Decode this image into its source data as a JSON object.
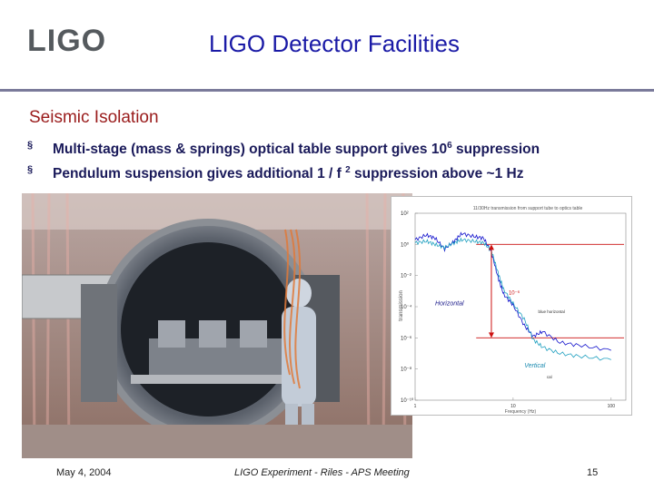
{
  "logo": "LIGO",
  "title": "LIGO Detector Facilities",
  "subtitle": "Seismic Isolation",
  "bullets": [
    {
      "text": "Multi-stage (mass & springs) optical table support gives 10",
      "sup": "6",
      "after": " suppression"
    },
    {
      "text": "Pendulum suspension gives additional 1 / f ",
      "sup": "2",
      "after": " suppression above ~1 Hz"
    }
  ],
  "bullet_glyph": "§",
  "chart_data": {
    "type": "line",
    "title": "11/30Hz transmission from support tube to optics table",
    "ylabel": "transmission",
    "xlabel": "Frequency (Hz)",
    "yscale": "log",
    "xscale": "log",
    "yticks": [
      "10²",
      "10⁰",
      "10⁻²",
      "10⁻⁴",
      "10⁻⁶",
      "10⁻⁸",
      "10⁻¹⁰"
    ],
    "xticks": [
      "1",
      "10",
      "100"
    ],
    "annotations": {
      "horizontal": "Horizontal",
      "vertical": "Vertical",
      "suppression": "10⁻⁶",
      "blue_label": "blue horizontal",
      "cal_label": "cal"
    },
    "reference_lines_exponent": [
      0,
      -6
    ],
    "arrow_at_frequency_hz": 6,
    "series": [
      {
        "name": "Horizontal",
        "color": "#1010cc",
        "x": [
          1,
          1.3,
          1.6,
          2,
          2.5,
          3,
          4,
          5,
          6,
          7,
          8,
          10,
          13,
          16,
          20,
          30,
          50,
          100
        ],
        "y_exp": [
          0.3,
          0.6,
          0.4,
          -0.3,
          0.2,
          0.7,
          0.5,
          0.4,
          -0.5,
          -2.1,
          -3.2,
          -3.9,
          -5.2,
          -5.9,
          -5.6,
          -6.3,
          -6.5,
          -6.8
        ]
      },
      {
        "name": "Vertical",
        "color": "#20a0c0",
        "x": [
          1,
          1.3,
          1.6,
          2,
          2.5,
          3,
          4,
          5,
          6,
          7,
          8,
          10,
          13,
          16,
          20,
          30,
          50,
          100
        ],
        "y_exp": [
          0.1,
          0.2,
          0.0,
          -0.2,
          0.1,
          0.3,
          0.2,
          0.1,
          -0.4,
          -1.8,
          -2.9,
          -3.8,
          -4.8,
          -6.1,
          -6.6,
          -7.0,
          -7.2,
          -7.4
        ]
      }
    ]
  },
  "footer": {
    "date": "May 4, 2004",
    "center": "LIGO Experiment - Riles - APS Meeting",
    "page": "15"
  }
}
